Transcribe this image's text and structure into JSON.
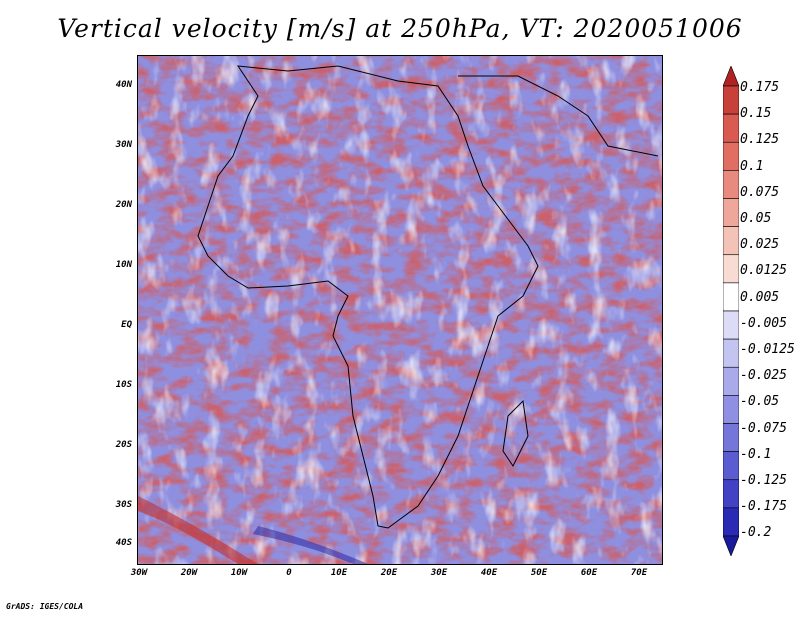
{
  "title": "Vertical velocity [m/s] at 250hPa, VT: 2020051006",
  "credit": "GrADS: IGES/COLA",
  "lat_labels": [
    "40N",
    "30N",
    "20N",
    "10N",
    "EQ",
    "10S",
    "20S",
    "30S",
    "40S"
  ],
  "lon_labels": [
    "30W",
    "20W",
    "10W",
    "0",
    "10E",
    "20E",
    "30E",
    "40E",
    "50E",
    "60E",
    "70E"
  ],
  "colorbar": {
    "labels": [
      "0.175",
      "0.15",
      "0.125",
      "0.1",
      "0.075",
      "0.05",
      "0.025",
      "0.0125",
      "0.005",
      "-0.005",
      "-0.0125",
      "-0.025",
      "-0.05",
      "-0.075",
      "-0.1",
      "-0.125",
      "-0.175",
      "-0.2"
    ],
    "colors": [
      "#b22222",
      "#c8403a",
      "#d95a50",
      "#e06e62",
      "#e88a7e",
      "#eea79a",
      "#f4c3b8",
      "#f8dcd4",
      "#ffffff",
      "#dcdcf6",
      "#c4c4f0",
      "#aaaaea",
      "#9090e2",
      "#7676da",
      "#5c5cd2",
      "#4242c4",
      "#2a2ab4",
      "#1a1a9c"
    ]
  }
}
